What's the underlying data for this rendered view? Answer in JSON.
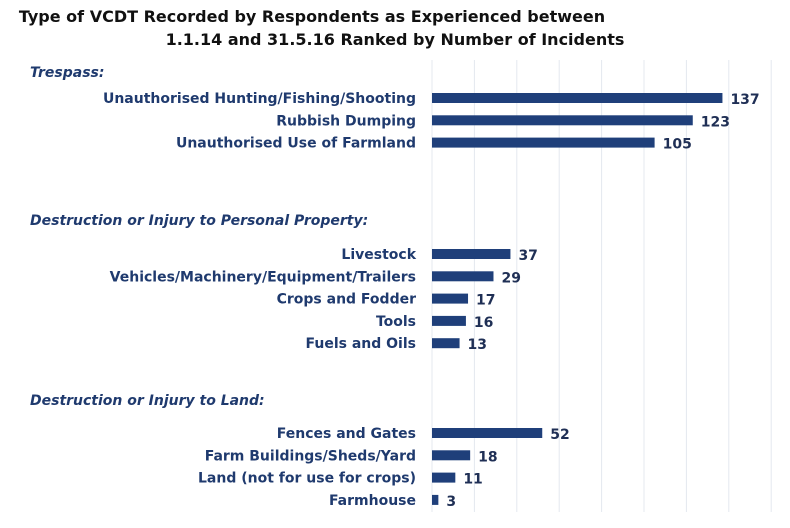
{
  "chart_data": {
    "type": "bar",
    "orientation": "horizontal",
    "title": [
      "Type of VCDT Recorded by Respondents as Experienced between",
      "1.1.14 and 31.5.16 Ranked by Number of Incidents"
    ],
    "xlim": [
      0,
      165
    ],
    "grid": true,
    "grid_step": 20,
    "bar_color": "#1f3f7a",
    "text_color": "#1f3a6e",
    "groups": [
      {
        "name": "Trespass:",
        "items": [
          {
            "label": "Unauthorised Hunting/Fishing/Shooting",
            "value": 137
          },
          {
            "label": "Rubbish Dumping",
            "value": 123
          },
          {
            "label": "Unauthorised Use of Farmland",
            "value": 105
          }
        ]
      },
      {
        "name": "Destruction or Injury to Personal Property:",
        "items": [
          {
            "label": "Livestock",
            "value": 37
          },
          {
            "label": "Vehicles/Machinery/Equipment/Trailers",
            "value": 29
          },
          {
            "label": "Crops and Fodder",
            "value": 17
          },
          {
            "label": "Tools",
            "value": 16
          },
          {
            "label": "Fuels and Oils",
            "value": 13
          }
        ]
      },
      {
        "name": "Destruction or Injury to Land:",
        "items": [
          {
            "label": "Fences and Gates",
            "value": 52
          },
          {
            "label": "Farm Buildings/Sheds/Yard",
            "value": 18
          },
          {
            "label": "Land (not for use for crops)",
            "value": 11
          },
          {
            "label": "Farmhouse",
            "value": 3
          }
        ]
      }
    ]
  }
}
